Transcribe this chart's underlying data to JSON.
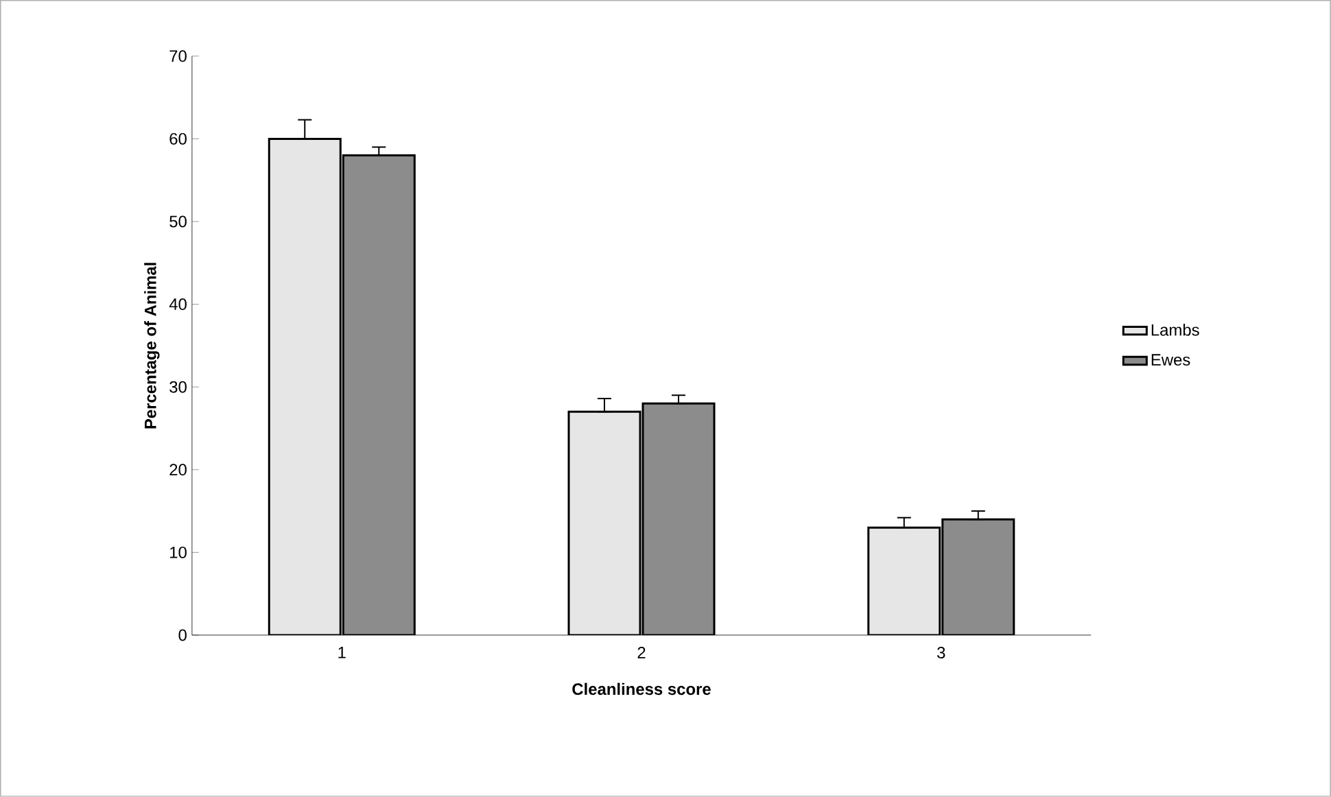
{
  "chart_data": {
    "type": "bar",
    "xlabel": "Cleanliness score",
    "ylabel": "Percentage of Animal",
    "categories": [
      "1",
      "2",
      "3"
    ],
    "series": [
      {
        "name": "Lambs",
        "color": "#e6e6e6",
        "values": [
          60,
          27,
          13
        ],
        "errors": [
          [
            60,
            62.3
          ],
          [
            27,
            28.6
          ],
          [
            13,
            14.2
          ]
        ]
      },
      {
        "name": "Ewes",
        "color": "#8c8c8c",
        "values": [
          58,
          28,
          14
        ],
        "errors": [
          [
            58,
            59
          ],
          [
            28,
            29
          ],
          [
            14,
            15
          ]
        ]
      }
    ],
    "ylim": [
      0,
      70
    ],
    "yticks": [
      0,
      10,
      20,
      30,
      40,
      50,
      60,
      70
    ],
    "grid": false,
    "legend": "right"
  }
}
